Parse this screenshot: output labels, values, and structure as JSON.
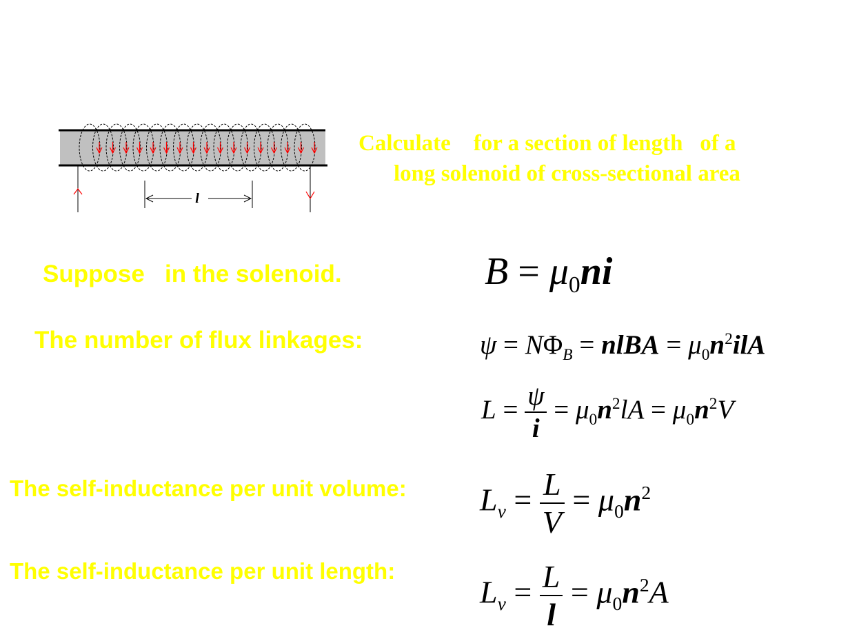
{
  "problem": {
    "line1": "Calculate    for a section of length   of a",
    "line2": "long solenoid of cross-sectional area"
  },
  "diagram": {
    "length_label": "l"
  },
  "labels": {
    "suppose": "Suppose   in the solenoid.",
    "flux_linkages": "The number of flux linkages:",
    "per_volume": "The self-inductance per unit volume:",
    "per_length": "The self-inductance per unit length:"
  },
  "eq_B": {
    "lhs": "B",
    "eq": "=",
    "mu": "μ",
    "sub0": "0",
    "ni": "ni"
  },
  "eq_psi": {
    "psi": "ψ",
    "eq1": "=",
    "N": "N",
    "Phi": "Φ",
    "subB": "B",
    "eq2": "=",
    "nlBA": "nlBA",
    "eq3": "=",
    "mu": "μ",
    "sub0": "0",
    "n": "n",
    "sup2": "2",
    "ilA": "ilA"
  },
  "eq_L": {
    "L": "L",
    "eq1": "=",
    "num": "ψ",
    "den": "i",
    "eq2": "=",
    "mu_a": "μ",
    "sub0_a": "0",
    "n_a": "n",
    "sup2_a": "2",
    "lA": "lA",
    "eq3": "=",
    "mu_b": "μ",
    "sub0_b": "0",
    "n_b": "n",
    "sup2_b": "2",
    "V": "V"
  },
  "eq_Lv": {
    "L": "L",
    "subv": "v",
    "eq1": "=",
    "num": "L",
    "den": "V",
    "eq2": "=",
    "mu": "μ",
    "sub0": "0",
    "n": "n",
    "sup2": "2"
  },
  "eq_Ll": {
    "L": "L",
    "subv": "v",
    "eq1": "=",
    "num": "L",
    "den": "l",
    "eq2": "=",
    "mu": "μ",
    "sub0": "0",
    "n": "n",
    "sup2": "2",
    "A": "A"
  },
  "colors": {
    "label_yellow": "#ffff00",
    "solenoid_fill": "#c0c0c0",
    "arrow_red": "#ff0000"
  }
}
